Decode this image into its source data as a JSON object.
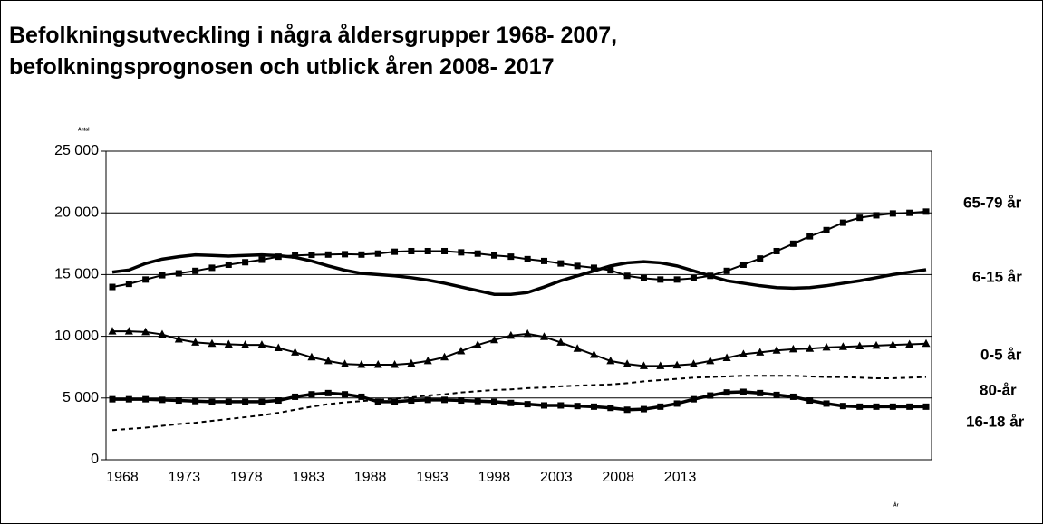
{
  "chart_data": {
    "type": "line",
    "title_lines": [
      "Befolkningsutveckling i några åldersgrupper 1968- 2007,",
      "befolkningsprognosen och utblick åren 2008- 2017"
    ],
    "y_axis_label": "Antal",
    "x_axis_label": "År",
    "x_labels": [
      "1968",
      "1973",
      "1978",
      "1983",
      "1988",
      "1993",
      "1998",
      "2003",
      "2008",
      "2013"
    ],
    "ylim": [
      0,
      25000
    ],
    "yticks": [
      {
        "value": 0,
        "label": "0"
      },
      {
        "value": 5000,
        "label": "5 000"
      },
      {
        "value": 10000,
        "label": "10 000"
      },
      {
        "value": 15000,
        "label": "15 000"
      },
      {
        "value": 20000,
        "label": "20 000"
      },
      {
        "value": 25000,
        "label": "25 000"
      }
    ],
    "grid": true,
    "series": [
      {
        "name": "65-79 år",
        "color": "#000000",
        "marker": "square",
        "dash": false,
        "width": 2,
        "values": [
          14000,
          14250,
          14600,
          14950,
          15100,
          15300,
          15550,
          15800,
          16000,
          16200,
          16450,
          16550,
          16600,
          16620,
          16650,
          16620,
          16700,
          16850,
          16900,
          16900,
          16900,
          16800,
          16700,
          16550,
          16450,
          16250,
          16100,
          15900,
          15700,
          15550,
          15350,
          14900,
          14700,
          14600,
          14600,
          14700,
          14900,
          15300,
          15800,
          16300,
          16900,
          17500,
          18100,
          18600,
          19200,
          19600,
          19800,
          19950,
          20000,
          20100
        ]
      },
      {
        "name": "6-15 år",
        "color": "#000000",
        "marker": "none",
        "dash": false,
        "width": 3.5,
        "values": [
          15200,
          15370,
          15900,
          16250,
          16450,
          16600,
          16550,
          16500,
          16550,
          16600,
          16530,
          16400,
          16100,
          15700,
          15350,
          15100,
          15000,
          14900,
          14750,
          14550,
          14300,
          14000,
          13700,
          13400,
          13400,
          13550,
          14000,
          14500,
          14900,
          15300,
          15700,
          15950,
          16050,
          15950,
          15700,
          15300,
          14900,
          14500,
          14300,
          14100,
          13950,
          13900,
          13950,
          14100,
          14300,
          14500,
          14750,
          15000,
          15200,
          15400
        ]
      },
      {
        "name": "0-5 år",
        "color": "#000000",
        "marker": "triangle",
        "dash": false,
        "width": 2,
        "values": [
          10400,
          10400,
          10350,
          10150,
          9750,
          9500,
          9400,
          9350,
          9300,
          9300,
          9050,
          8700,
          8300,
          8000,
          7750,
          7700,
          7700,
          7700,
          7800,
          8000,
          8300,
          8800,
          9300,
          9700,
          10050,
          10200,
          9950,
          9500,
          9000,
          8500,
          8000,
          7750,
          7600,
          7600,
          7650,
          7750,
          8000,
          8250,
          8550,
          8700,
          8850,
          8950,
          9000,
          9100,
          9150,
          9200,
          9250,
          9300,
          9350,
          9400
        ]
      },
      {
        "name": "80-år",
        "color": "#000000",
        "marker": "none",
        "dash": true,
        "width": 2,
        "values": [
          2400,
          2500,
          2600,
          2750,
          2900,
          3000,
          3150,
          3300,
          3450,
          3600,
          3800,
          4050,
          4300,
          4500,
          4650,
          4750,
          4850,
          4950,
          5050,
          5200,
          5300,
          5450,
          5550,
          5650,
          5700,
          5800,
          5850,
          5950,
          6000,
          6050,
          6100,
          6200,
          6350,
          6450,
          6550,
          6650,
          6700,
          6750,
          6800,
          6800,
          6800,
          6800,
          6750,
          6700,
          6700,
          6650,
          6600,
          6600,
          6650,
          6700
        ]
      },
      {
        "name": "16-18 år",
        "color": "#000000",
        "marker": "square",
        "dash": false,
        "width": 3.5,
        "values": [
          4900,
          4900,
          4900,
          4850,
          4800,
          4750,
          4700,
          4700,
          4700,
          4700,
          4800,
          5100,
          5300,
          5400,
          5300,
          5100,
          4700,
          4700,
          4800,
          4850,
          4850,
          4800,
          4750,
          4700,
          4600,
          4500,
          4400,
          4400,
          4350,
          4300,
          4200,
          4050,
          4100,
          4300,
          4550,
          4900,
          5200,
          5450,
          5500,
          5400,
          5250,
          5100,
          4800,
          4550,
          4350,
          4300,
          4300,
          4300,
          4300,
          4300
        ]
      }
    ]
  }
}
